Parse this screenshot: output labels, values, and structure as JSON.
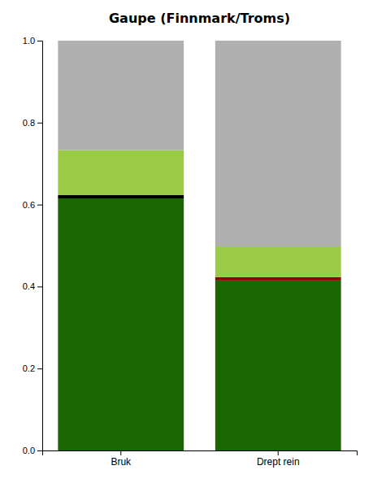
{
  "chart_data": {
    "type": "bar",
    "title": "Gaupe (Finnmark/Troms)",
    "stacked": true,
    "grid": false,
    "categories": [
      "Bruk",
      "Drept rein"
    ],
    "series": [
      {
        "color": "#1a6600",
        "values": [
          0.615,
          0.415
        ]
      },
      {
        "colors": [
          "#000000",
          "#8b0000"
        ],
        "values": [
          0.008,
          0.008
        ]
      },
      {
        "color": "#99cc44",
        "values": [
          0.11,
          0.075
        ]
      },
      {
        "color": "#b0b0b0",
        "values": [
          0.267,
          0.502
        ]
      }
    ],
    "ylim": [
      0.0,
      1.0
    ],
    "yticks": [
      {
        "value": 0.0,
        "label": "0.0"
      },
      0.2,
      0.4,
      0.6,
      0.8,
      {
        "value": 1.0,
        "label": "1.0"
      }
    ]
  }
}
